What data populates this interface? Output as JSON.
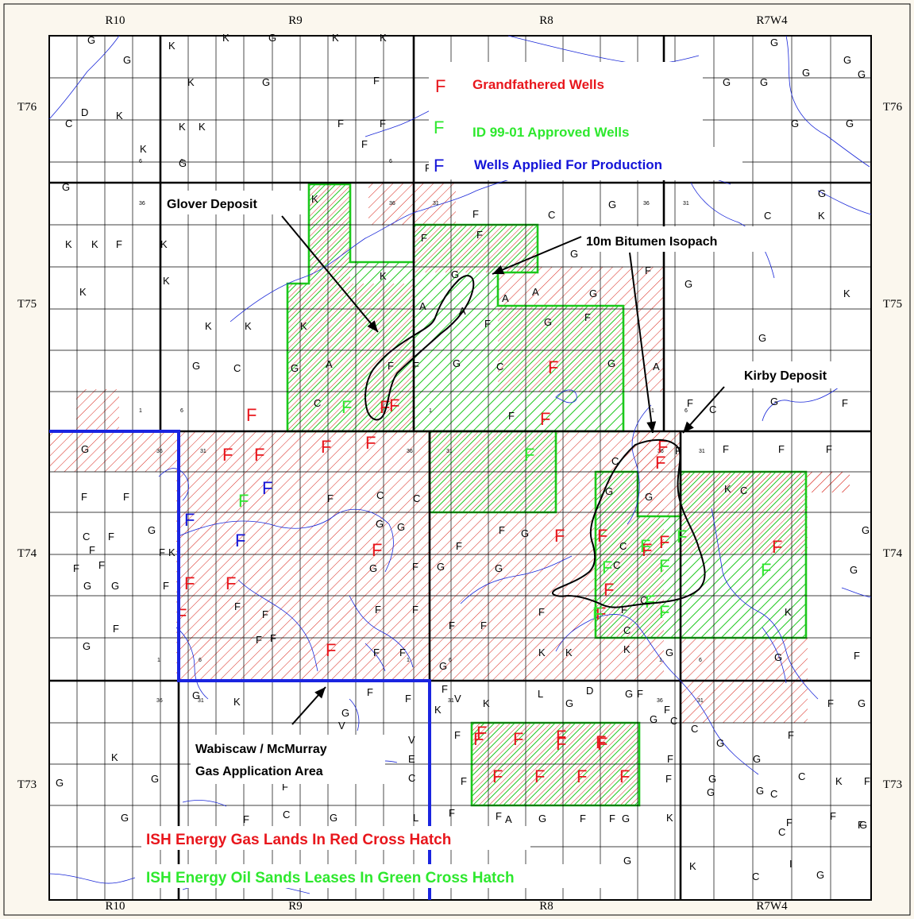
{
  "ranges_top": [
    "R10",
    "R9",
    "R8",
    "R7W4"
  ],
  "ranges_bottom": [
    "R10",
    "R9",
    "R8",
    "R7W4"
  ],
  "townships_left": [
    "T76",
    "T75",
    "T74",
    "T73"
  ],
  "townships_right": [
    "T76",
    "T75",
    "T74",
    "T73"
  ],
  "legend": {
    "grandfathered": {
      "symbol": "F",
      "label": "Grandfathered Wells",
      "color": "#e8161c"
    },
    "approved": {
      "symbol": "F",
      "label": "ID 99-01 Approved Wells",
      "color": "#2ee82e"
    },
    "applied": {
      "symbol": "F",
      "label": "Wells Applied For Production",
      "color": "#1414d8"
    }
  },
  "labels": {
    "glover": "Glover Deposit",
    "isopach": "10m Bitumen Isopach",
    "kirby": "Kirby Deposit",
    "wabiscaw_line1": "Wabiscaw / McMurray",
    "wabiscaw_line2": "Gas Application Area"
  },
  "footer": {
    "gas_lands": "ISH Energy Gas Lands In Red Cross Hatch",
    "oil_sands": "ISH Energy Oil Sands Leases In Green Cross Hatch",
    "gas_color": "#e8161c",
    "oil_color": "#2ee82e"
  },
  "section_numbers": [
    "1",
    "6",
    "36",
    "31"
  ],
  "well_symbols": [
    "G",
    "K",
    "F",
    "C",
    "D",
    "A",
    "L",
    "E",
    "I",
    "V",
    "S"
  ],
  "big_wells": {
    "red": [
      "F",
      "F",
      "F",
      "F",
      "F",
      "F",
      "F",
      "F",
      "F",
      "F",
      "F",
      "F",
      "F",
      "F",
      "F",
      "F",
      "F",
      "F",
      "F",
      "F",
      "F",
      "F",
      "F",
      "F",
      "F",
      "F",
      "F",
      "F",
      "F",
      "F",
      "F",
      "F",
      "F",
      "F"
    ],
    "green": [
      "F",
      "F",
      "F",
      "F",
      "F",
      "F",
      "F",
      "F",
      "F",
      "F",
      "F"
    ],
    "blue": [
      "F",
      "F",
      "F",
      "F"
    ]
  },
  "colors": {
    "hatch_red": "#d9261c",
    "hatch_green": "#1cc81c",
    "blue_boundary": "#1a24e0",
    "river": "#1a28d8"
  }
}
